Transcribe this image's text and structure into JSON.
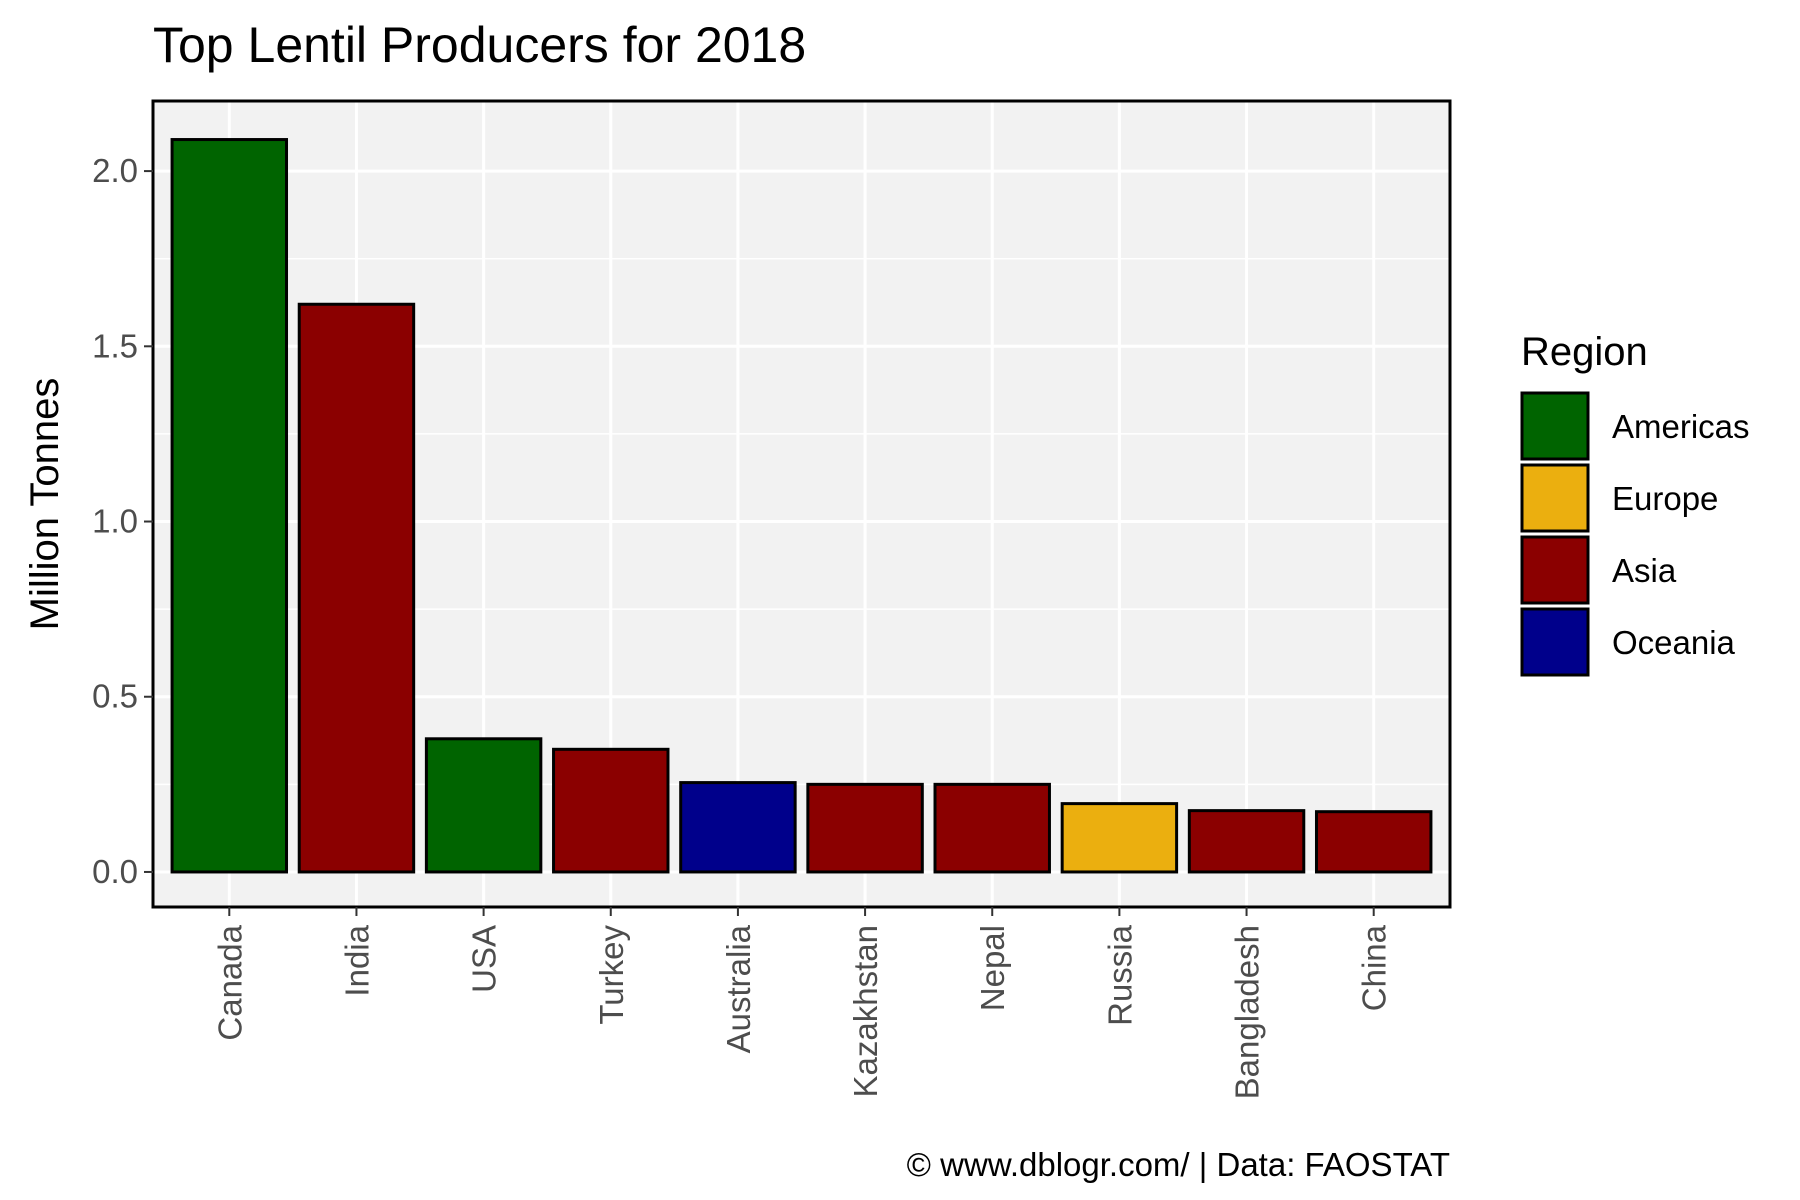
{
  "chart_data": {
    "type": "bar",
    "title": "Top Lentil Producers for 2018",
    "xlabel": "",
    "ylabel": "Million Tonnes",
    "ylim": [
      -0.1,
      2.2
    ],
    "yticks": [
      "0.0",
      "0.5",
      "1.0",
      "1.5",
      "2.0"
    ],
    "grid": true,
    "legend_position": "right",
    "caption": "© www.dblogr.com/  |  Data: FAOSTAT",
    "categories": [
      "Canada",
      "India",
      "USA",
      "Turkey",
      "Australia",
      "Kazakhstan",
      "Nepal",
      "Russia",
      "Bangladesh",
      "China"
    ],
    "values": [
      2.09,
      1.62,
      0.38,
      0.35,
      0.255,
      0.25,
      0.25,
      0.195,
      0.175,
      0.172
    ],
    "regions": [
      "Americas",
      "Asia",
      "Americas",
      "Asia",
      "Oceania",
      "Asia",
      "Asia",
      "Europe",
      "Asia",
      "Asia"
    ],
    "legend": {
      "title": "Region",
      "entries": [
        {
          "name": "Americas",
          "color": "#006400"
        },
        {
          "name": "Europe",
          "color": "#EBAF0F"
        },
        {
          "name": "Asia",
          "color": "#8B0000"
        },
        {
          "name": "Oceania",
          "color": "#00008B"
        }
      ]
    }
  }
}
